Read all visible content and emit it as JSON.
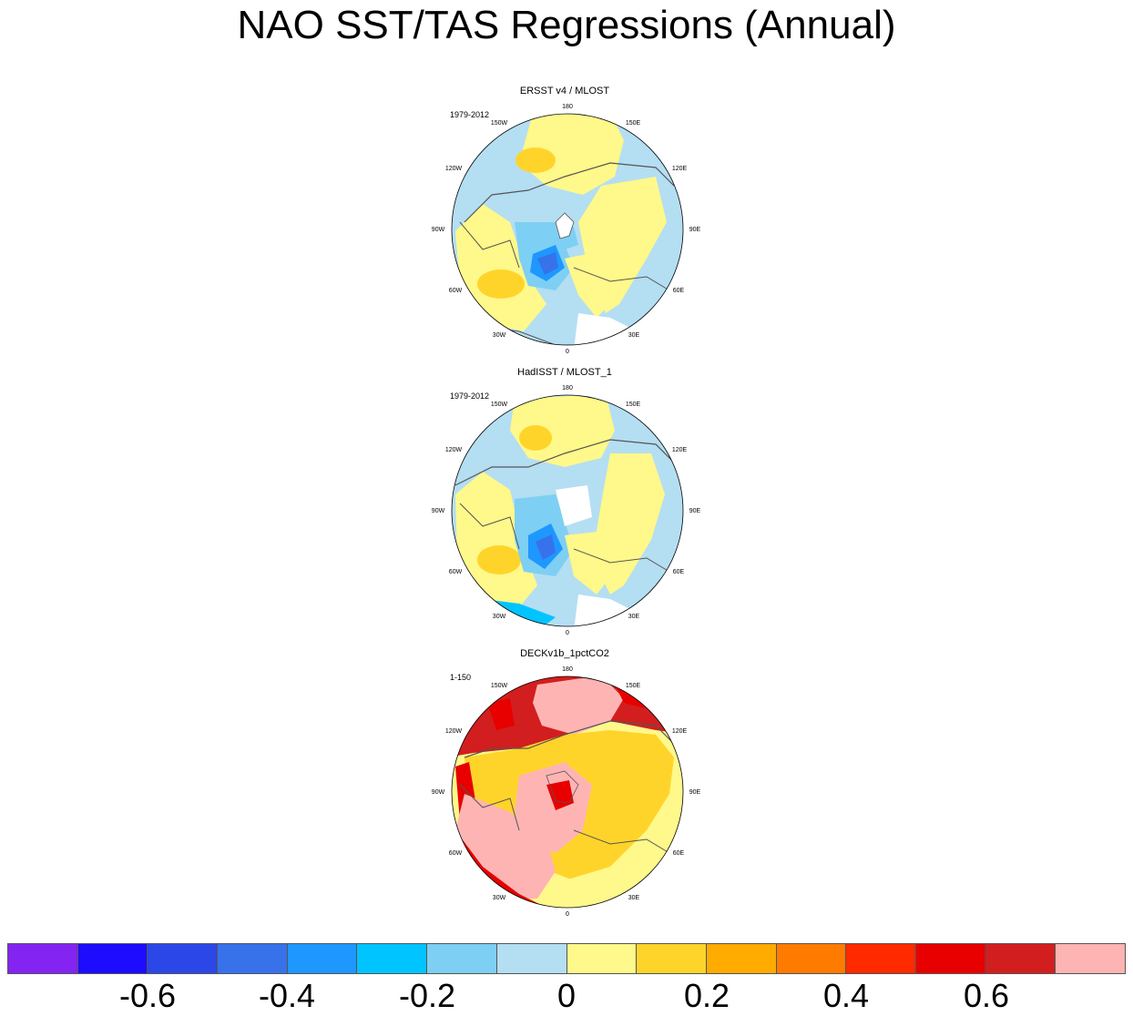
{
  "title": "NAO SST/TAS Regressions (Annual)",
  "panels": [
    {
      "title": "ERSST v4 / MLOST",
      "period": "1979-2012"
    },
    {
      "title": "HadISST / MLOST_1",
      "period": "1979-2012"
    },
    {
      "title": "DECKv1b_1pctCO2",
      "period": "1-150"
    }
  ],
  "lon_labels": {
    "deg180": "180",
    "deg150e": "150E",
    "deg120e": "120E",
    "deg90e": "90E",
    "deg60e": "60E",
    "deg30e": "30E",
    "deg0": "0",
    "deg30w": "30W",
    "deg60w": "60W",
    "deg90w": "90W",
    "deg120w": "120W",
    "deg150w": "150W"
  },
  "colorbar": {
    "colors": [
      "#8424f2",
      "#1e0cff",
      "#2c47e8",
      "#3772eb",
      "#1e97ff",
      "#00c4ff",
      "#7ecff4",
      "#b4def2",
      "#fff88a",
      "#ffd42a",
      "#ffab00",
      "#ff7b00",
      "#ff2a00",
      "#e80000",
      "#d21e1e",
      "#ffb4b4"
    ],
    "labels": [
      "-0.6",
      "-0.4",
      "-0.2",
      "0",
      "0.2",
      "0.4",
      "0.6"
    ]
  }
}
